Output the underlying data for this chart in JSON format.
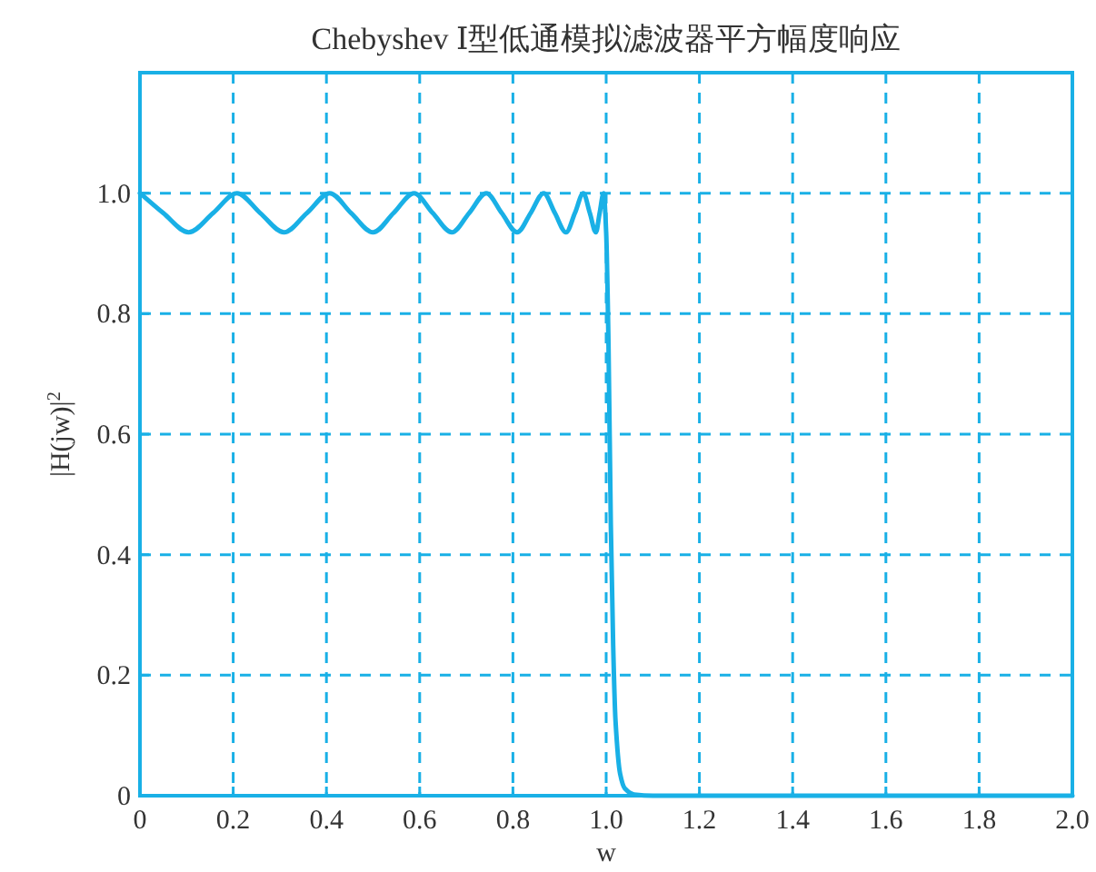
{
  "chart_data": {
    "type": "line",
    "title": "Chebyshev Ⅰ型低通模拟滤波器平方幅度响应",
    "xlabel": "w",
    "ylabel": "|H(jw)|$^{2}$",
    "xlim": [
      0,
      2
    ],
    "ylim": [
      0,
      1.2
    ],
    "xticks": [
      0,
      0.2,
      0.4,
      0.6,
      0.8,
      {
        "value": 1,
        "label": "1.0"
      },
      1.2,
      1.4,
      1.6,
      1.8,
      {
        "value": 2,
        "label": "2.0"
      }
    ],
    "yticks": [
      0,
      0.2,
      0.4,
      0.6,
      0.8,
      {
        "value": 1,
        "label": "1.0"
      }
    ],
    "grid": true,
    "marker": "none",
    "line_style": "solid",
    "series": [
      {
        "color": "#19b0e6",
        "x": [
          0,
          0.05,
          0.1045,
          0.157,
          0.208,
          0.258,
          0.309,
          0.358,
          0.407,
          0.453,
          0.5,
          0.544,
          0.588,
          0.628,
          0.669,
          0.706,
          0.743,
          0.776,
          0.809,
          0.838,
          0.866,
          0.89,
          0.914,
          0.933,
          0.951,
          0.965,
          0.978,
          0.986,
          0.9945,
          1.0,
          1.005,
          1.01,
          1.015,
          1.02,
          1.03,
          1.04,
          1.06,
          1.1,
          1.5,
          2.0
        ],
        "values": [
          1.0,
          0.967,
          0.935,
          0.967,
          1.0,
          0.967,
          0.935,
          0.967,
          1.0,
          0.967,
          0.935,
          0.967,
          1.0,
          0.967,
          0.935,
          0.967,
          1.0,
          0.967,
          0.935,
          0.967,
          1.0,
          0.967,
          0.935,
          0.967,
          1.0,
          0.967,
          0.935,
          0.967,
          1.0,
          0.935,
          0.75,
          0.45,
          0.25,
          0.125,
          0.036,
          0.012,
          0.002,
          0,
          0,
          0
        ]
      }
    ]
  }
}
